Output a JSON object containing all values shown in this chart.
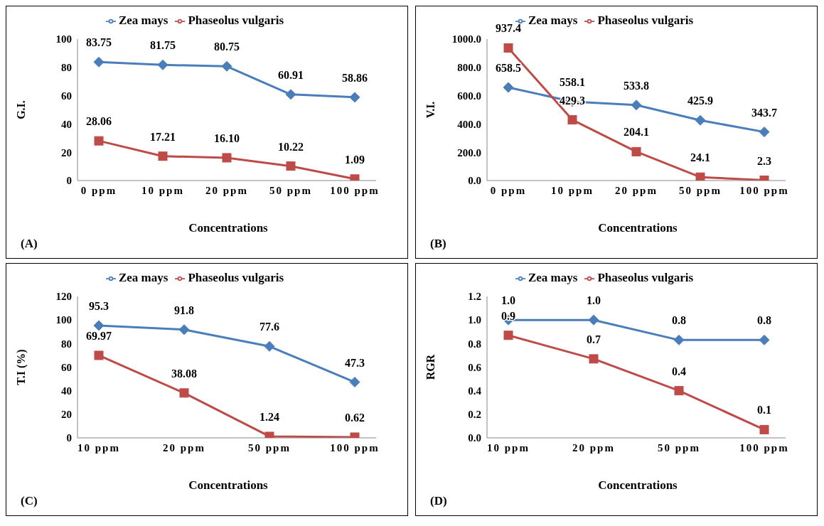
{
  "chart_data": [
    {
      "type": "line",
      "xlabel": "Concentrations",
      "ylabel": "G.I.",
      "categories": [
        "0 ppm",
        "10 ppm",
        "20 ppm",
        "50 ppm",
        "100 ppm"
      ],
      "ylim": [
        0,
        100
      ],
      "yticks": [
        0,
        20,
        40,
        60,
        80,
        100
      ],
      "legend": "top",
      "grid": false,
      "annotations": [
        "(A)"
      ],
      "series": [
        {
          "name": "Zea mays",
          "color": "#4a7ebb",
          "marker": "diamond",
          "values": [
            83.75,
            81.75,
            80.75,
            60.91,
            58.86
          ],
          "value_labels": [
            "83.75",
            "81.75",
            "80.75",
            "60.91",
            "58.86"
          ]
        },
        {
          "name": "Phaseolus vulgaris",
          "color": "#be4b48",
          "marker": "square",
          "values": [
            28.06,
            17.21,
            16.1,
            10.22,
            1.09
          ],
          "value_labels": [
            "28.06",
            "17.21",
            "16.10",
            "10.22",
            "1.09"
          ]
        }
      ]
    },
    {
      "type": "line",
      "xlabel": "Concentrations",
      "ylabel": "V.I.",
      "categories": [
        "0 ppm",
        "10 ppm",
        "20 ppm",
        "50 ppm",
        "100 ppm"
      ],
      "ylim": [
        0,
        1000
      ],
      "yticks": [
        {
          "value": 0,
          "label": "0.0"
        },
        {
          "value": 200,
          "label": "200.0"
        },
        {
          "value": 400,
          "label": "400.0"
        },
        {
          "value": 600,
          "label": "600.0"
        },
        {
          "value": 800,
          "label": "800.0"
        },
        {
          "value": 1000,
          "label": "1000.0"
        }
      ],
      "legend": "top",
      "grid": false,
      "annotations": [
        "(B)"
      ],
      "series": [
        {
          "name": "Zea mays",
          "color": "#4a7ebb",
          "marker": "diamond",
          "values": [
            658.5,
            558.1,
            533.8,
            425.9,
            343.7
          ],
          "value_labels": [
            "658.5",
            "558.1",
            "533.8",
            "425.9",
            "343.7"
          ]
        },
        {
          "name": "Phaseolus vulgaris",
          "color": "#be4b48",
          "marker": "square",
          "values": [
            937.4,
            429.3,
            204.1,
            24.1,
            2.3
          ],
          "value_labels": [
            "937.4",
            "429.3",
            "204.1",
            "24.1",
            "2.3"
          ]
        }
      ]
    },
    {
      "type": "line",
      "xlabel": "Concentrations",
      "ylabel": "T.I (%)",
      "categories": [
        "10 ppm",
        "20 ppm",
        "50 ppm",
        "100 ppm"
      ],
      "ylim": [
        0,
        120
      ],
      "yticks": [
        0,
        20,
        40,
        60,
        80,
        100,
        120
      ],
      "legend": "top",
      "grid": false,
      "annotations": [
        "(C)"
      ],
      "series": [
        {
          "name": "Zea mays",
          "color": "#4a7ebb",
          "marker": "diamond",
          "values": [
            95.3,
            91.8,
            77.6,
            47.3
          ],
          "value_labels": [
            "95.3",
            "91.8",
            "77.6",
            "47.3"
          ]
        },
        {
          "name": "Phaseolus vulgaris",
          "color": "#be4b48",
          "marker": "square",
          "values": [
            69.97,
            38.08,
            1.24,
            0.62
          ],
          "value_labels": [
            "69.97",
            "38.08",
            "1.24",
            "0.62"
          ]
        }
      ]
    },
    {
      "type": "line",
      "xlabel": "Concentrations",
      "ylabel": "RGR",
      "categories": [
        "10 ppm",
        "20 ppm",
        "50 ppm",
        "100 ppm"
      ],
      "ylim": [
        0,
        1.2
      ],
      "yticks": [
        {
          "value": 0,
          "label": "0.0"
        },
        {
          "value": 0.2,
          "label": "0.2"
        },
        {
          "value": 0.4,
          "label": "0.4"
        },
        {
          "value": 0.6,
          "label": "0.6"
        },
        {
          "value": 0.8,
          "label": "0.8"
        },
        {
          "value": 1,
          "label": "1.0"
        },
        {
          "value": 1.2,
          "label": "1.2"
        }
      ],
      "legend": "top",
      "grid": false,
      "annotations": [
        "(D)"
      ],
      "series": [
        {
          "name": "Zea mays",
          "color": "#4a7ebb",
          "marker": "diamond",
          "values": [
            1.0,
            1.0,
            0.83,
            0.83
          ],
          "value_labels": [
            "1.0",
            "1.0",
            "0.8",
            "0.8"
          ]
        },
        {
          "name": "Phaseolus vulgaris",
          "color": "#be4b48",
          "marker": "square",
          "values": [
            0.87,
            0.67,
            0.4,
            0.07
          ],
          "value_labels": [
            "0.9",
            "0.7",
            "0.4",
            "0.1"
          ]
        }
      ]
    }
  ]
}
